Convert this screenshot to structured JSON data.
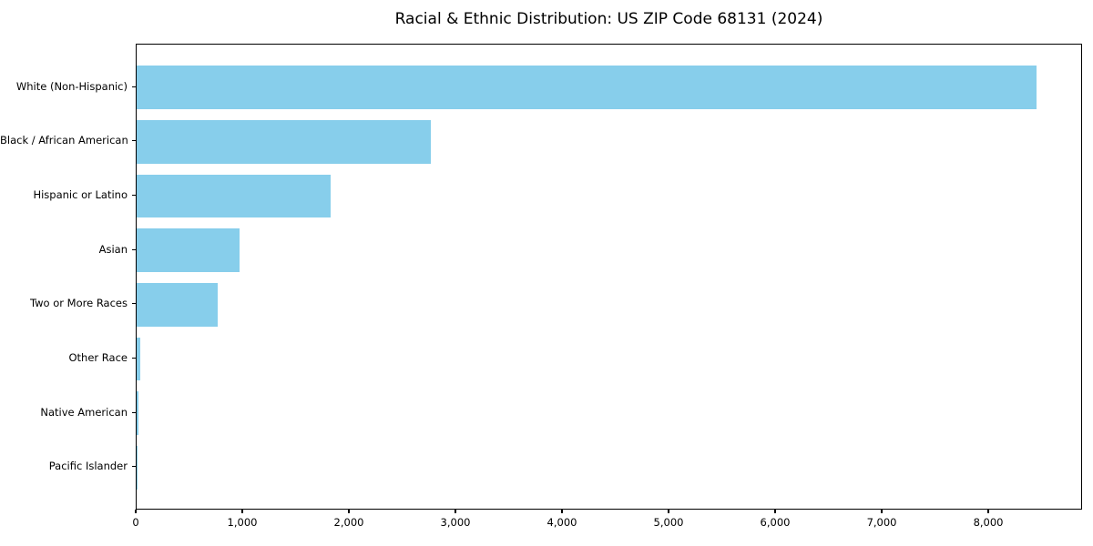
{
  "chart_data": {
    "type": "bar",
    "orientation": "horizontal",
    "title": "Racial & Ethnic Distribution: US ZIP Code 68131 (2024)",
    "categories": [
      "White (Non-Hispanic)",
      "Black / African American",
      "Hispanic or Latino",
      "Asian",
      "Two or More Races",
      "Other Race",
      "Native American",
      "Pacific Islander"
    ],
    "values": [
      8440,
      2760,
      1820,
      965,
      760,
      30,
      20,
      4
    ],
    "xlabel": "",
    "ylabel": "",
    "xlim": [
      0,
      8880
    ],
    "xticks": [
      0,
      1000,
      2000,
      3000,
      4000,
      5000,
      6000,
      7000,
      8000
    ],
    "xtick_labels": [
      "0",
      "1,000",
      "2,000",
      "3,000",
      "4,000",
      "5,000",
      "6,000",
      "7,000",
      "8,000"
    ],
    "bar_color": "#87CEEB",
    "spine_color": "#000000",
    "grid": false,
    "legend": null,
    "plot_background": "#ffffff",
    "category_order": "descending-top-to-bottom"
  }
}
